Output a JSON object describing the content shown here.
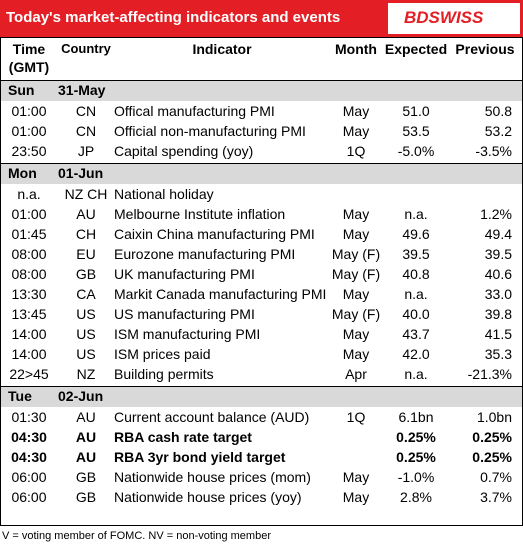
{
  "header": {
    "title": "Today's market-affecting indicators and events",
    "logo": "BDSWISS"
  },
  "columns": [
    "Time (GMT)",
    "Country",
    "Indicator",
    "Month",
    "Expected",
    "Previous"
  ],
  "sections": [
    {
      "day": "Sun",
      "date": "31-May",
      "rows": [
        {
          "time": "01:00",
          "country": "CN",
          "indicator": "Offical manufacturing PMI",
          "month": "May",
          "expected": "51.0",
          "previous": "50.8"
        },
        {
          "time": "01:00",
          "country": "CN",
          "indicator": "Official non-manufacturing PMI",
          "month": "May",
          "expected": "53.5",
          "previous": "53.2"
        },
        {
          "time": "23:50",
          "country": "JP",
          "indicator": "Capital spending (yoy)",
          "month": "1Q",
          "expected": "-5.0%",
          "previous": "-3.5%"
        }
      ]
    },
    {
      "day": "Mon",
      "date": "01-Jun",
      "rows": [
        {
          "time": "n.a.",
          "country": "NZ CH",
          "indicator": "National holiday"
        },
        {
          "time": "01:00",
          "country": "AU",
          "indicator": "Melbourne Institute inflation",
          "month": "May",
          "expected": "n.a.",
          "previous": "1.2%"
        },
        {
          "time": "01:45",
          "country": "CH",
          "indicator": "Caixin China manufacturing PMI",
          "month": "May",
          "expected": "49.6",
          "previous": "49.4"
        },
        {
          "time": "08:00",
          "country": "EU",
          "indicator": "Eurozone manufacturing PMI",
          "month": "May (F)",
          "expected": "39.5",
          "previous": "39.5"
        },
        {
          "time": "08:00",
          "country": "GB",
          "indicator": "UK manufacturing PMI",
          "month": "May (F)",
          "expected": "40.8",
          "previous": "40.6"
        },
        {
          "time": "13:30",
          "country": "CA",
          "indicator": "Markit Canada manufacturing PMI",
          "month": "May",
          "expected": "n.a.",
          "previous": "33.0"
        },
        {
          "time": "13:45",
          "country": "US",
          "indicator": "US manufacturing PMI",
          "month": "May (F)",
          "expected": "40.0",
          "previous": "39.8"
        },
        {
          "time": "14:00",
          "country": "US",
          "indicator": "ISM manufacturing PMI",
          "month": "May",
          "expected": "43.7",
          "previous": "41.5"
        },
        {
          "time": "14:00",
          "country": "US",
          "indicator": "ISM prices paid",
          "month": "May",
          "expected": "42.0",
          "previous": "35.3"
        },
        {
          "time": "22>45",
          "country": "NZ",
          "indicator": "Building permits",
          "month": "Apr",
          "expected": "n.a.",
          "previous": "-21.3%"
        }
      ]
    },
    {
      "day": "Tue",
      "date": "02-Jun",
      "rows": [
        {
          "time": "01:30",
          "country": "AU",
          "indicator": "Current account balance (AUD)",
          "month": "1Q",
          "expected": "6.1bn",
          "previous": "1.0bn"
        },
        {
          "time": "04:30",
          "country": "AU",
          "indicator": "RBA cash rate target",
          "expected": "0.25%",
          "previous": "0.25%",
          "bold": true
        },
        {
          "time": "04:30",
          "country": "AU",
          "indicator": "RBA 3yr bond yield target",
          "expected": "0.25%",
          "previous": "0.25%",
          "bold": true
        },
        {
          "time": "06:00",
          "country": "GB",
          "indicator": "Nationwide house prices (mom)",
          "month": "May",
          "expected": "-1.0%",
          "previous": "0.7%"
        },
        {
          "time": "06:00",
          "country": "GB",
          "indicator": "Nationwide house prices (yoy)",
          "month": "May",
          "expected": "2.8%",
          "previous": "3.7%"
        }
      ]
    }
  ],
  "footnote": "V = voting member of FOMC. NV = non-voting member"
}
